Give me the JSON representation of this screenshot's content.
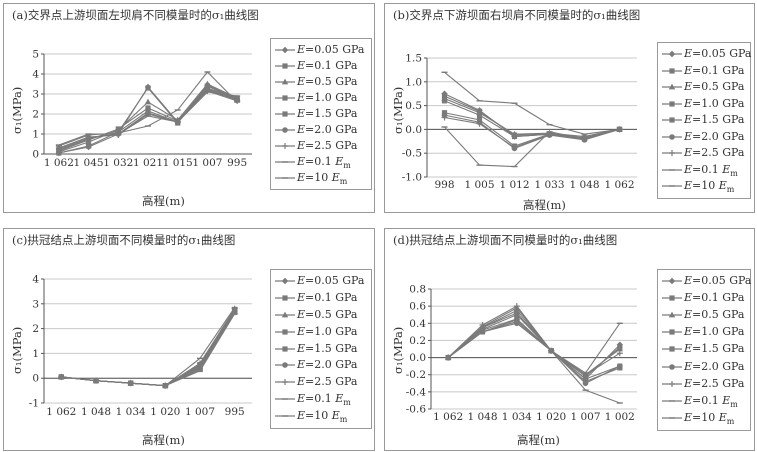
{
  "chart_data": [
    {
      "type": "line",
      "title": "(a)交界点上游坝面左坝肩不同模量时的σ₁曲线图",
      "xlabel": "高程(m)",
      "ylabel": "σ₁(MPa)",
      "categories": [
        "1 062",
        "1 045",
        "1 032",
        "1 021",
        "1 015",
        "1 007",
        "995"
      ],
      "ylim": [
        0,
        5
      ],
      "yticks": [
        0,
        1,
        2,
        3,
        4,
        5
      ],
      "grid": true,
      "legend": "right",
      "series": [
        {
          "name": "E=0.05 GPa",
          "marker": "diamond",
          "values": [
            0.05,
            0.35,
            1.0,
            3.35,
            1.6,
            3.45,
            2.75
          ]
        },
        {
          "name": "E=0.1 GPa",
          "marker": "square",
          "values": [
            0.05,
            0.4,
            1.1,
            3.3,
            1.55,
            3.4,
            2.7
          ]
        },
        {
          "name": "E=0.5 GPa",
          "marker": "triangle",
          "values": [
            0.1,
            0.6,
            1.2,
            2.6,
            1.7,
            3.5,
            2.8
          ]
        },
        {
          "name": "E=1.0 GPa",
          "marker": "square",
          "values": [
            0.15,
            0.7,
            1.25,
            2.3,
            1.65,
            3.3,
            2.75
          ]
        },
        {
          "name": "E=1.5 GPa",
          "marker": "square",
          "values": [
            0.2,
            0.75,
            1.1,
            2.15,
            1.6,
            3.25,
            2.7
          ]
        },
        {
          "name": "E=2.0 GPa",
          "marker": "circle",
          "values": [
            0.25,
            0.8,
            1.0,
            2.05,
            1.6,
            3.2,
            2.7
          ]
        },
        {
          "name": "E=2.5 GPa",
          "marker": "plus",
          "values": [
            0.3,
            0.85,
            0.95,
            2.0,
            1.6,
            3.15,
            2.65
          ]
        },
        {
          "name": "E=0.1 Em",
          "marker": "dash",
          "values": [
            0.4,
            0.95,
            1.05,
            1.4,
            2.2,
            4.1,
            2.6
          ]
        },
        {
          "name": "E=10 Em",
          "marker": "dash",
          "values": [
            0.45,
            1.0,
            1.0,
            1.9,
            1.6,
            3.1,
            2.9
          ]
        }
      ]
    },
    {
      "type": "line",
      "title": "(b)交界点下游坝面右坝肩不同模量时的σ₁曲线图",
      "xlabel": "高程(m)",
      "ylabel": "σ₁(MPa)",
      "categories": [
        "998",
        "1 005",
        "1 012",
        "1 033",
        "1 048",
        "1 062"
      ],
      "ylim": [
        -1.0,
        1.5
      ],
      "yticks": [
        -1.0,
        -0.5,
        0.0,
        0.5,
        1.0,
        1.5
      ],
      "grid": true,
      "legend": "right",
      "series": [
        {
          "name": "E=0.05 GPa",
          "marker": "diamond",
          "values": [
            0.75,
            0.4,
            -0.15,
            -0.1,
            -0.15,
            0.0
          ]
        },
        {
          "name": "E=0.1 GPa",
          "marker": "square",
          "values": [
            0.7,
            0.38,
            -0.12,
            -0.1,
            -0.18,
            0.0
          ]
        },
        {
          "name": "E=0.5 GPa",
          "marker": "triangle",
          "values": [
            0.65,
            0.35,
            -0.1,
            -0.08,
            -0.15,
            0.0
          ]
        },
        {
          "name": "E=1.0 GPa",
          "marker": "square",
          "values": [
            0.6,
            0.3,
            -0.15,
            -0.1,
            -0.2,
            0.0
          ]
        },
        {
          "name": "E=1.5 GPa",
          "marker": "square",
          "values": [
            0.35,
            0.2,
            -0.35,
            -0.1,
            -0.2,
            0.0
          ]
        },
        {
          "name": "E=2.0 GPa",
          "marker": "circle",
          "values": [
            0.3,
            0.15,
            -0.4,
            -0.12,
            -0.22,
            0.0
          ]
        },
        {
          "name": "E=2.5 GPa",
          "marker": "plus",
          "values": [
            0.25,
            0.12,
            -0.38,
            -0.1,
            -0.2,
            0.0
          ]
        },
        {
          "name": "E=0.1 Em",
          "marker": "dash",
          "values": [
            1.2,
            0.6,
            0.55,
            0.1,
            -0.1,
            0.0
          ]
        },
        {
          "name": "E=10 Em",
          "marker": "dash",
          "values": [
            0.05,
            -0.75,
            -0.78,
            -0.05,
            -0.2,
            0.0
          ]
        }
      ]
    },
    {
      "type": "line",
      "title": "(c)拱冠结点上游坝面不同模量时的σ₁曲线图",
      "xlabel": "高程(m)",
      "ylabel": "σ₁(MPa)",
      "categories": [
        "1 062",
        "1 048",
        "1 034",
        "1 020",
        "1 007",
        "995"
      ],
      "ylim": [
        -1,
        4
      ],
      "yticks": [
        -1,
        0,
        1,
        2,
        3,
        4
      ],
      "grid": true,
      "legend": "right",
      "series": [
        {
          "name": "E=0.05 GPa",
          "marker": "diamond",
          "values": [
            0.05,
            -0.1,
            -0.2,
            -0.3,
            0.4,
            2.7
          ]
        },
        {
          "name": "E=0.1 GPa",
          "marker": "square",
          "values": [
            0.05,
            -0.1,
            -0.2,
            -0.3,
            0.35,
            2.65
          ]
        },
        {
          "name": "E=0.5 GPa",
          "marker": "triangle",
          "values": [
            0.05,
            -0.1,
            -0.2,
            -0.3,
            0.45,
            2.7
          ]
        },
        {
          "name": "E=1.0 GPa",
          "marker": "square",
          "values": [
            0.05,
            -0.1,
            -0.2,
            -0.3,
            0.5,
            2.75
          ]
        },
        {
          "name": "E=1.5 GPa",
          "marker": "square",
          "values": [
            0.05,
            -0.1,
            -0.2,
            -0.3,
            0.55,
            2.75
          ]
        },
        {
          "name": "E=2.0 GPa",
          "marker": "circle",
          "values": [
            0.05,
            -0.1,
            -0.2,
            -0.3,
            0.5,
            2.7
          ]
        },
        {
          "name": "E=2.5 GPa",
          "marker": "plus",
          "values": [
            0.05,
            -0.1,
            -0.2,
            -0.3,
            0.6,
            2.8
          ]
        },
        {
          "name": "E=0.1 Em",
          "marker": "dash",
          "values": [
            0.05,
            -0.1,
            -0.2,
            -0.3,
            0.8,
            2.85
          ]
        },
        {
          "name": "E=10 Em",
          "marker": "dash",
          "values": [
            0.05,
            -0.1,
            -0.2,
            -0.3,
            0.3,
            2.6
          ]
        }
      ]
    },
    {
      "type": "line",
      "title": "(d)拱冠结点上游坝面不同模量时的σ₁曲线图",
      "xlabel": "高程(m)",
      "ylabel": "σ₁(MPa)",
      "categories": [
        "1 062",
        "1 048",
        "1 034",
        "1 020",
        "1 007",
        "1 002"
      ],
      "ylim": [
        -0.6,
        0.8
      ],
      "yticks": [
        -0.6,
        -0.4,
        -0.2,
        0.0,
        0.2,
        0.4,
        0.6,
        0.8
      ],
      "grid": true,
      "legend": "right",
      "series": [
        {
          "name": "E=0.05 GPa",
          "marker": "diamond",
          "values": [
            0.0,
            0.35,
            0.55,
            0.08,
            -0.25,
            0.15
          ]
        },
        {
          "name": "E=0.1 GPa",
          "marker": "square",
          "values": [
            0.0,
            0.33,
            0.5,
            0.08,
            -0.22,
            0.12
          ]
        },
        {
          "name": "E=0.5 GPa",
          "marker": "triangle",
          "values": [
            0.0,
            0.36,
            0.58,
            0.08,
            -0.2,
            0.1
          ]
        },
        {
          "name": "E=1.0 GPa",
          "marker": "square",
          "values": [
            0.0,
            0.32,
            0.45,
            0.08,
            -0.25,
            -0.1
          ]
        },
        {
          "name": "E=1.5 GPa",
          "marker": "square",
          "values": [
            0.0,
            0.3,
            0.42,
            0.08,
            -0.28,
            -0.12
          ]
        },
        {
          "name": "E=2.0 GPa",
          "marker": "circle",
          "values": [
            0.0,
            0.3,
            0.4,
            0.08,
            -0.3,
            -0.1
          ]
        },
        {
          "name": "E=2.5 GPa",
          "marker": "plus",
          "values": [
            0.0,
            0.38,
            0.6,
            0.08,
            -0.2,
            0.05
          ]
        },
        {
          "name": "E=0.1 Em",
          "marker": "dash",
          "values": [
            0.0,
            0.35,
            0.52,
            0.08,
            -0.18,
            0.4
          ]
        },
        {
          "name": "E=10 Em",
          "marker": "dash",
          "values": [
            0.0,
            0.3,
            0.44,
            0.08,
            -0.38,
            -0.53
          ]
        }
      ]
    }
  ],
  "colors": {
    "line": "#7a7a7a",
    "grid": "#c8c8c8",
    "axis": "#555555",
    "border": "#999999",
    "text": "#333333"
  }
}
